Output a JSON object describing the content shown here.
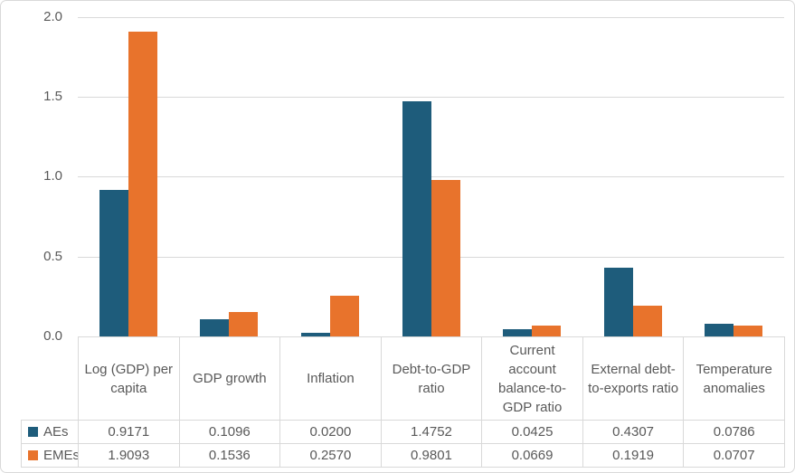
{
  "chart_data": {
    "type": "bar",
    "title": "",
    "xlabel": "",
    "ylabel": "",
    "categories": [
      "Log (GDP) per capita",
      "GDP growth",
      "Inflation",
      "Debt-to-GDP ratio",
      "Current account balance-to-GDP ratio",
      "External debt-to-exports ratio",
      "Temperature anomalies"
    ],
    "series": [
      {
        "name": "AEs",
        "color": "#1E5C7B",
        "values": [
          0.9171,
          0.1096,
          0.02,
          1.4752,
          0.0425,
          0.4307,
          0.0786
        ],
        "display": [
          "0.9171",
          "0.1096",
          "0.0200",
          "1.4752",
          "0.0425",
          "0.4307",
          "0.0786"
        ]
      },
      {
        "name": "EMEs",
        "color": "#E8732C",
        "values": [
          1.9093,
          0.1536,
          0.257,
          0.9801,
          0.0669,
          0.1919,
          0.0707
        ],
        "display": [
          "1.9093",
          "0.1536",
          "0.2570",
          "0.9801",
          "0.0669",
          "0.1919",
          "0.0707"
        ]
      }
    ],
    "ylim": [
      0,
      2
    ],
    "yticks": [
      0.0,
      0.5,
      1.0,
      1.5,
      2.0
    ],
    "ytick_labels": [
      "0.0",
      "0.5",
      "1.0",
      "1.5",
      "2.0"
    ],
    "grid": true,
    "legend_position": "table-left",
    "data_table_shown": true
  },
  "colors": {
    "grid": "#D9D9D9",
    "table_border": "#D9D9D9",
    "text": "#595959",
    "background": "#FFFFFF"
  }
}
